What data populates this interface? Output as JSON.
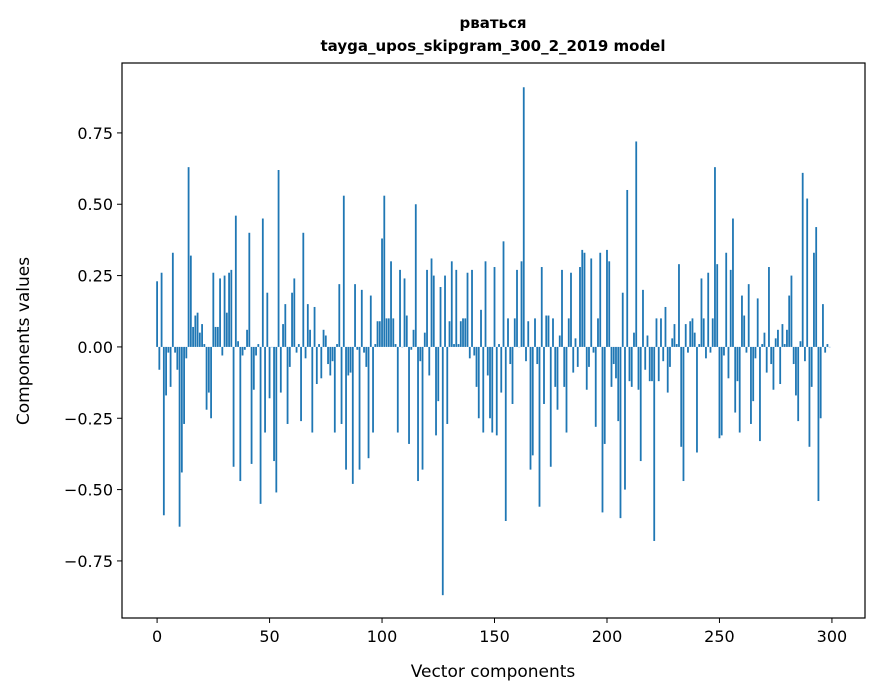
{
  "chart_data": {
    "type": "bar",
    "title": [
      "рваться",
      "tayga_upos_skipgram_300_2_2019 model"
    ],
    "xlabel": "Vector components",
    "ylabel": "Components values",
    "xlim": [
      -15.6,
      314.7
    ],
    "ylim": [
      -0.95,
      0.995
    ],
    "xticks": [
      0,
      50,
      100,
      150,
      200,
      250,
      300
    ],
    "xtick_labels": [
      "0",
      "50",
      "100",
      "150",
      "200",
      "250",
      "300"
    ],
    "yticks": [
      -0.75,
      -0.5,
      -0.25,
      0,
      0.25,
      0.5,
      0.75
    ],
    "ytick_labels": [
      "−0.75",
      "−0.50",
      "−0.25",
      "0.00",
      "0.25",
      "0.50",
      "0.75"
    ],
    "grid": false,
    "color": "#1f77b4",
    "values": [
      0.23,
      -0.08,
      0.26,
      -0.59,
      -0.17,
      -0.02,
      -0.14,
      0.33,
      -0.02,
      -0.08,
      -0.63,
      -0.44,
      -0.27,
      -0.04,
      0.63,
      0.32,
      0.07,
      0.11,
      0.12,
      0.05,
      0.08,
      0.01,
      -0.22,
      -0.16,
      -0.25,
      0.26,
      0.07,
      0.07,
      0.24,
      -0.03,
      0.25,
      0.12,
      0.26,
      0.27,
      -0.42,
      0.46,
      0.02,
      -0.47,
      -0.03,
      -0.01,
      0.06,
      0.4,
      -0.41,
      -0.15,
      -0.03,
      0.01,
      -0.55,
      0.45,
      -0.3,
      0.19,
      -0.18,
      0.0,
      -0.4,
      -0.51,
      0.62,
      -0.16,
      0.08,
      0.15,
      -0.27,
      -0.07,
      0.19,
      0.24,
      -0.02,
      0.01,
      -0.26,
      0.4,
      -0.04,
      0.15,
      0.06,
      -0.3,
      0.14,
      -0.13,
      0.01,
      -0.11,
      0.06,
      0.04,
      -0.06,
      -0.1,
      -0.05,
      -0.3,
      0.01,
      0.22,
      -0.27,
      0.53,
      -0.43,
      -0.1,
      -0.09,
      -0.48,
      0.22,
      -0.01,
      -0.43,
      0.2,
      -0.02,
      -0.07,
      -0.39,
      0.18,
      -0.3,
      0.01,
      0.09,
      0.09,
      0.38,
      0.53,
      0.1,
      0.1,
      0.3,
      0.1,
      0.01,
      -0.3,
      0.27,
      0.0,
      0.24,
      0.11,
      -0.34,
      -0.01,
      0.06,
      0.5,
      -0.47,
      -0.05,
      -0.43,
      0.05,
      0.27,
      -0.1,
      0.31,
      0.25,
      -0.31,
      -0.19,
      0.21,
      -0.87,
      0.25,
      -0.27,
      0.09,
      0.3,
      0.01,
      0.27,
      0.01,
      0.09,
      0.1,
      0.1,
      0.26,
      -0.04,
      0.27,
      -0.03,
      -0.14,
      -0.25,
      0.13,
      -0.3,
      0.3,
      -0.1,
      -0.25,
      -0.3,
      0.28,
      -0.31,
      0.01,
      -0.16,
      0.37,
      -0.61,
      0.1,
      -0.06,
      -0.2,
      0.1,
      0.27,
      0.0,
      0.3,
      0.91,
      -0.05,
      0.09,
      -0.43,
      -0.38,
      0.1,
      -0.06,
      -0.56,
      0.28,
      -0.2,
      0.11,
      0.11,
      -0.42,
      0.1,
      -0.14,
      -0.22,
      0.04,
      0.27,
      -0.14,
      -0.3,
      0.1,
      0.26,
      -0.09,
      0.03,
      -0.07,
      0.28,
      0.34,
      0.33,
      -0.15,
      -0.07,
      0.31,
      -0.02,
      -0.28,
      0.1,
      0.33,
      -0.58,
      -0.34,
      0.34,
      0.3,
      -0.14,
      -0.06,
      -0.11,
      -0.26,
      -0.6,
      0.19,
      -0.5,
      0.55,
      -0.12,
      -0.14,
      0.05,
      0.72,
      -0.15,
      -0.4,
      0.2,
      -0.08,
      0.04,
      -0.12,
      -0.12,
      -0.68,
      0.1,
      -0.12,
      0.1,
      -0.05,
      0.14,
      -0.16,
      -0.07,
      0.03,
      0.08,
      0.01,
      0.29,
      -0.35,
      -0.47,
      0.08,
      -0.02,
      0.09,
      0.1,
      0.05,
      -0.37,
      0.01,
      0.24,
      0.1,
      -0.04,
      0.26,
      -0.02,
      0.1,
      0.63,
      0.29,
      -0.32,
      -0.31,
      -0.03,
      0.33,
      -0.11,
      0.27,
      0.45,
      -0.23,
      -0.12,
      -0.3,
      0.18,
      0.11,
      -0.02,
      0.22,
      -0.27,
      -0.19,
      -0.04,
      0.17,
      -0.33,
      0.01,
      0.05,
      -0.09,
      0.28,
      -0.06,
      -0.15,
      0.03,
      0.06,
      -0.13,
      0.08,
      0.01,
      0.06,
      0.18,
      0.25,
      -0.06,
      -0.17,
      -0.26,
      0.02,
      0.61,
      -0.05,
      0.52,
      -0.35,
      -0.14,
      0.33,
      0.42,
      -0.54,
      -0.25,
      0.15,
      -0.02,
      0.01,
      0.0
    ]
  }
}
